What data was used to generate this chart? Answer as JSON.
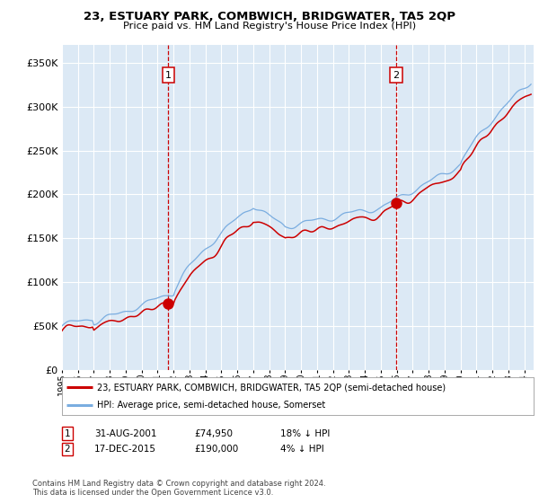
{
  "title": "23, ESTUARY PARK, COMBWICH, BRIDGWATER, TA5 2QP",
  "subtitle": "Price paid vs. HM Land Registry's House Price Index (HPI)",
  "legend_line1": "23, ESTUARY PARK, COMBWICH, BRIDGWATER, TA5 2QP (semi-detached house)",
  "legend_line2": "HPI: Average price, semi-detached house, Somerset",
  "transaction1_date": "31-AUG-2001",
  "transaction1_price": 74950,
  "transaction1_label": "18% ↓ HPI",
  "transaction2_date": "17-DEC-2015",
  "transaction2_price": 190000,
  "transaction2_label": "4% ↓ HPI",
  "footnote1": "Contains HM Land Registry data © Crown copyright and database right 2024.",
  "footnote2": "This data is licensed under the Open Government Licence v3.0.",
  "background_color": "#dce9f5",
  "red_line_color": "#cc0000",
  "blue_line_color": "#7aade0",
  "marker_color": "#cc0000",
  "vline_color": "#cc0000",
  "grid_color": "#ffffff",
  "ylim": [
    0,
    370000
  ],
  "yticks": [
    0,
    50000,
    100000,
    150000,
    200000,
    250000,
    300000,
    350000
  ],
  "ytick_labels": [
    "£0",
    "£50K",
    "£100K",
    "£150K",
    "£200K",
    "£250K",
    "£300K",
    "£350K"
  ]
}
